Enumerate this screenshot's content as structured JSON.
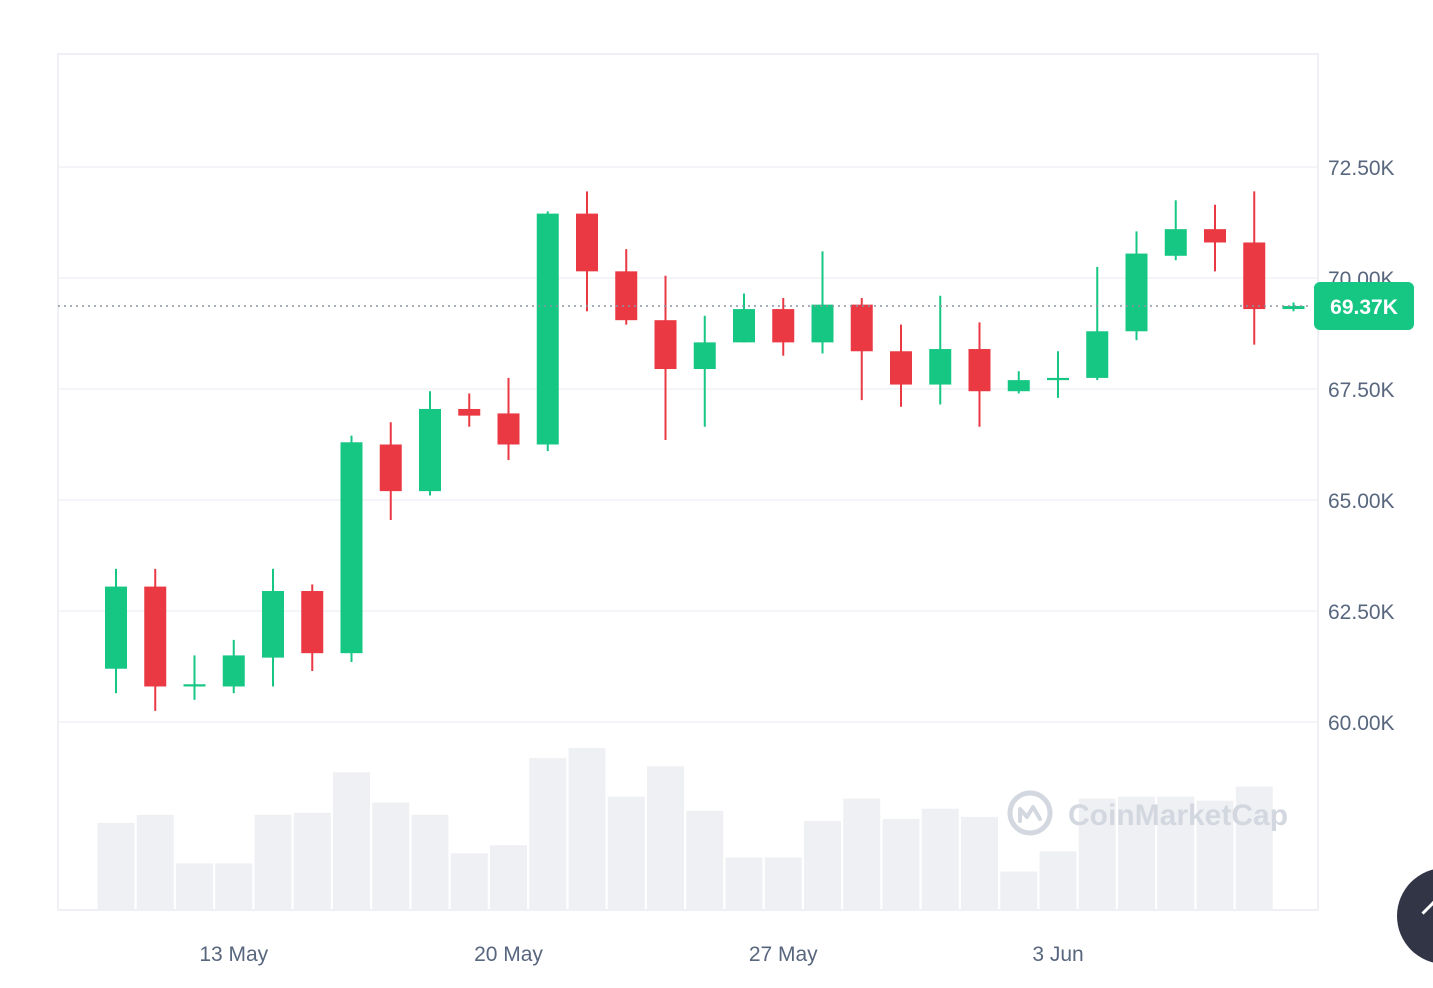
{
  "chart_data": {
    "type": "candlestick",
    "title": "",
    "xlabel": "",
    "ylabel": "",
    "ylim": [
      57500,
      75000
    ],
    "grid": true,
    "y_ticks": [
      {
        "value": 60000,
        "label": "60.00K"
      },
      {
        "value": 62500,
        "label": "62.50K"
      },
      {
        "value": 65000,
        "label": "65.00K"
      },
      {
        "value": 67500,
        "label": "67.50K"
      },
      {
        "value": 70000,
        "label": "70.00K"
      },
      {
        "value": 72500,
        "label": "72.50K"
      }
    ],
    "x_ticks": [
      {
        "date": "2024-05-13",
        "label": "13 May"
      },
      {
        "date": "2024-05-20",
        "label": "20 May"
      },
      {
        "date": "2024-05-27",
        "label": "27 May"
      },
      {
        "date": "2024-06-03",
        "label": "3 Jun"
      }
    ],
    "current_price": {
      "value": 69370,
      "label": "69.37K"
    },
    "colors": {
      "up": "#16c784",
      "down": "#ea3943",
      "volume": "#eff0f3",
      "grid": "#eff2f5",
      "axis_text": "#58667e"
    },
    "watermark": "CoinMarketCap",
    "candles": [
      {
        "date": "2024-05-10",
        "open": 61200,
        "high": 63450,
        "low": 60650,
        "close": 63050,
        "volume": 4.3
      },
      {
        "date": "2024-05-11",
        "open": 63050,
        "high": 63450,
        "low": 60250,
        "close": 60800,
        "volume": 4.7
      },
      {
        "date": "2024-05-12",
        "open": 60800,
        "high": 61500,
        "low": 60500,
        "close": 60850,
        "volume": 2.3
      },
      {
        "date": "2024-05-13",
        "open": 60800,
        "high": 61850,
        "low": 60650,
        "close": 61500,
        "volume": 2.3
      },
      {
        "date": "2024-05-14",
        "open": 61450,
        "high": 63450,
        "low": 60800,
        "close": 62950,
        "volume": 4.7
      },
      {
        "date": "2024-05-15",
        "open": 62950,
        "high": 63100,
        "low": 61150,
        "close": 61550,
        "volume": 4.8
      },
      {
        "date": "2024-05-16",
        "open": 61550,
        "high": 66450,
        "low": 61350,
        "close": 66300,
        "volume": 6.8
      },
      {
        "date": "2024-05-17",
        "open": 66250,
        "high": 66750,
        "low": 64550,
        "close": 65200,
        "volume": 5.3
      },
      {
        "date": "2024-05-18",
        "open": 65200,
        "high": 67450,
        "low": 65100,
        "close": 67050,
        "volume": 4.7
      },
      {
        "date": "2024-05-19",
        "open": 67050,
        "high": 67400,
        "low": 66650,
        "close": 66900,
        "volume": 2.8
      },
      {
        "date": "2024-05-20",
        "open": 66950,
        "high": 67750,
        "low": 65900,
        "close": 66250,
        "volume": 3.2
      },
      {
        "date": "2024-05-21",
        "open": 66250,
        "high": 71500,
        "low": 66100,
        "close": 71450,
        "volume": 7.5
      },
      {
        "date": "2024-05-22",
        "open": 71450,
        "high": 71950,
        "low": 69250,
        "close": 70150,
        "volume": 8.0
      },
      {
        "date": "2024-05-23",
        "open": 70150,
        "high": 70650,
        "low": 68950,
        "close": 69050,
        "volume": 5.6
      },
      {
        "date": "2024-05-24",
        "open": 69050,
        "high": 70050,
        "low": 66350,
        "close": 67950,
        "volume": 7.1
      },
      {
        "date": "2024-05-25",
        "open": 67950,
        "high": 69150,
        "low": 66650,
        "close": 68550,
        "volume": 4.9
      },
      {
        "date": "2024-05-26",
        "open": 68550,
        "high": 69650,
        "low": 68550,
        "close": 69300,
        "volume": 2.6
      },
      {
        "date": "2024-05-27",
        "open": 69300,
        "high": 69550,
        "low": 68250,
        "close": 68550,
        "volume": 2.6
      },
      {
        "date": "2024-05-28",
        "open": 68550,
        "high": 70600,
        "low": 68300,
        "close": 69400,
        "volume": 4.4
      },
      {
        "date": "2024-05-29",
        "open": 69400,
        "high": 69550,
        "low": 67250,
        "close": 68350,
        "volume": 5.5
      },
      {
        "date": "2024-05-30",
        "open": 68350,
        "high": 68950,
        "low": 67100,
        "close": 67600,
        "volume": 4.5
      },
      {
        "date": "2024-05-31",
        "open": 67600,
        "high": 69600,
        "low": 67150,
        "close": 68400,
        "volume": 5.0
      },
      {
        "date": "2024-06-01",
        "open": 68400,
        "high": 69000,
        "low": 66650,
        "close": 67450,
        "volume": 4.6
      },
      {
        "date": "2024-06-02",
        "open": 67450,
        "high": 67900,
        "low": 67400,
        "close": 67700,
        "volume": 1.9
      },
      {
        "date": "2024-06-03",
        "open": 67700,
        "high": 68350,
        "low": 67300,
        "close": 67750,
        "volume": 2.9
      },
      {
        "date": "2024-06-04",
        "open": 67750,
        "high": 70250,
        "low": 67700,
        "close": 68800,
        "volume": 5.5
      },
      {
        "date": "2024-06-05",
        "open": 68800,
        "high": 71050,
        "low": 68600,
        "close": 70550,
        "volume": 5.6
      },
      {
        "date": "2024-06-06",
        "open": 70500,
        "high": 71750,
        "low": 70400,
        "close": 71100,
        "volume": 5.6
      },
      {
        "date": "2024-06-07",
        "open": 71100,
        "high": 71650,
        "low": 70150,
        "close": 70800,
        "volume": 5.4
      },
      {
        "date": "2024-06-08",
        "open": 70800,
        "high": 71950,
        "low": 68500,
        "close": 69300,
        "volume": 6.1
      },
      {
        "date": "2024-06-09",
        "open": 69300,
        "high": 69450,
        "low": 69250,
        "close": 69370,
        "volume": 0
      }
    ]
  }
}
